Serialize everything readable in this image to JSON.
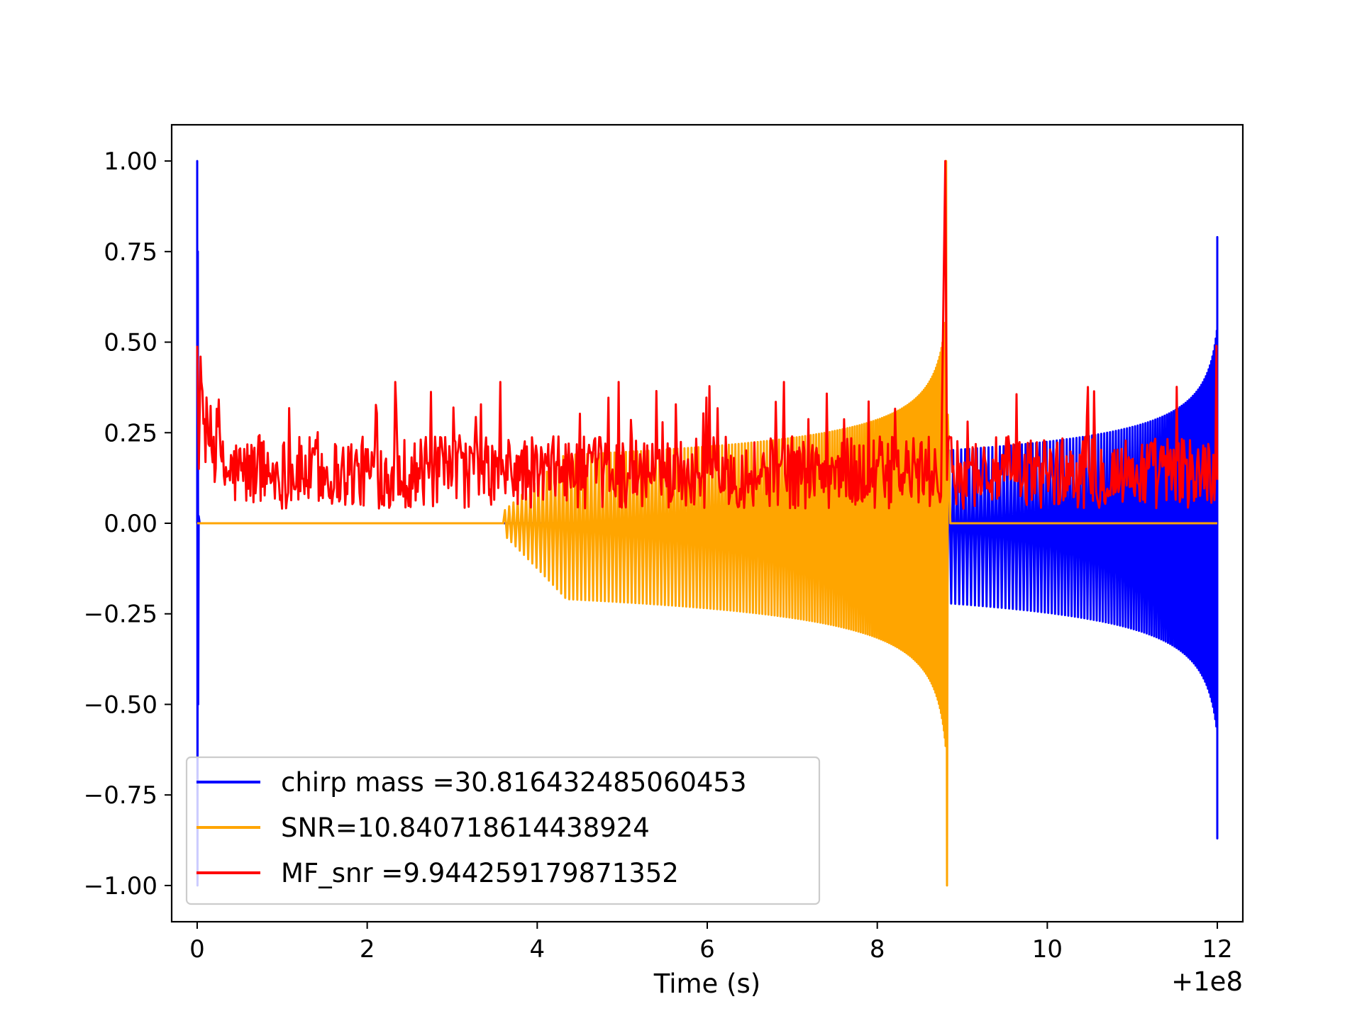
{
  "chart_data": {
    "type": "line",
    "title": "",
    "xlabel": "Time (s)",
    "ylabel": "",
    "x_offset_label": "+1e8",
    "xlim": [
      -0.3,
      12.3
    ],
    "ylim": [
      -1.1,
      1.1
    ],
    "x_ticks": [
      0,
      2,
      4,
      6,
      8,
      10,
      12
    ],
    "x_tick_labels": [
      "0",
      "2",
      "4",
      "6",
      "8",
      "10",
      "12"
    ],
    "y_ticks": [
      1.0,
      0.75,
      0.5,
      0.25,
      0.0,
      -0.25,
      -0.5,
      -0.75,
      -1.0
    ],
    "y_tick_labels": [
      "1.00",
      "0.75",
      "0.50",
      "0.25",
      "0.00",
      "−0.25",
      "−0.50",
      "−0.75",
      "−1.00"
    ],
    "grid": false,
    "legend_position": "lower-left",
    "series": [
      {
        "name": "chirp mass =30.816432485060453",
        "color": "#0000ff",
        "description": "normalized chirp waveform: spike to 1.00 / -1.00 at t=0, flat near 0 until ~8.7, then oscillating chirp growing to about 0.79 / -0.87 at t=12"
      },
      {
        "name": "SNR=10.840718614438924",
        "color": "#ffa500",
        "description": "chirp waveform: flat at 0 from t=0 to ~3.6, oscillating with growing amplitude, reaching 1.00 / -1.00 near t=8.8, flat at 0 to t=12"
      },
      {
        "name": "MF_snr =9.944259179871352",
        "color": "#ff0000",
        "description": "matched-filter output: noisy series in about 0.0 to 0.38 across t=0..12, peak 1.00 at t~8.8, about 0.49 at t=0 and t=12"
      }
    ],
    "key_points": [
      {
        "series": "chirp mass =30.816432485060453",
        "x": 0.0,
        "y": 1.0
      },
      {
        "series": "chirp mass =30.816432485060453",
        "x": 0.0,
        "y": -1.0
      },
      {
        "series": "chirp mass =30.816432485060453",
        "x": 12.0,
        "y": 0.79
      },
      {
        "series": "chirp mass =30.816432485060453",
        "x": 12.0,
        "y": -0.87
      },
      {
        "series": "SNR=10.840718614438924",
        "x": 8.8,
        "y": 1.0
      },
      {
        "series": "SNR=10.840718614438924",
        "x": 8.8,
        "y": -1.0
      },
      {
        "series": "MF_snr =9.944259179871352",
        "x": 8.8,
        "y": 1.0
      },
      {
        "series": "MF_snr =9.944259179871352",
        "x": 0.0,
        "y": 0.49
      }
    ]
  }
}
